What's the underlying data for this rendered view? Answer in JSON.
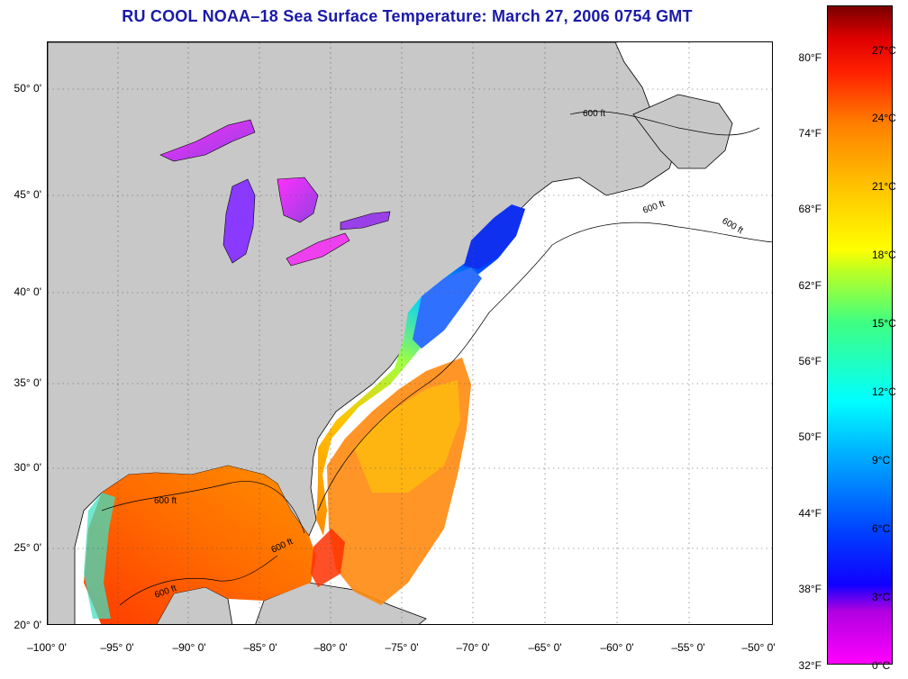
{
  "title": "RU COOL  NOAA–18  Sea Surface Temperature:  March 27, 2006 0754 GMT",
  "map": {
    "lat_labels": [
      "50° 0'",
      "45° 0'",
      "40° 0'",
      "35° 0'",
      "30° 0'",
      "25° 0'",
      "20° 0'"
    ],
    "lon_labels": [
      "–100° 0'",
      "–95° 0'",
      "–90° 0'",
      "–85° 0'",
      "–80° 0'",
      "–75° 0'",
      "–70° 0'",
      "–65° 0'",
      "–60° 0'",
      "–55° 0'",
      "–50° 0'"
    ],
    "lat_range": [
      20,
      52.5
    ],
    "lon_range": [
      -100,
      -50
    ],
    "contour_label": "600 ft",
    "colors": {
      "land": "#c8c8c8",
      "no_data": "#ffffff",
      "coast": "#000000"
    }
  },
  "colorbar": {
    "fahrenheit_ticks": [
      "80°F",
      "74°F",
      "68°F",
      "62°F",
      "56°F",
      "50°F",
      "44°F",
      "38°F",
      "32°F"
    ],
    "celsius_ticks": [
      "27°C",
      "24°C",
      "21°C",
      "18°C",
      "15°C",
      "12°C",
      "9°C",
      "6°C",
      "3°C",
      "0°C"
    ],
    "range_c": [
      0,
      29
    ]
  }
}
